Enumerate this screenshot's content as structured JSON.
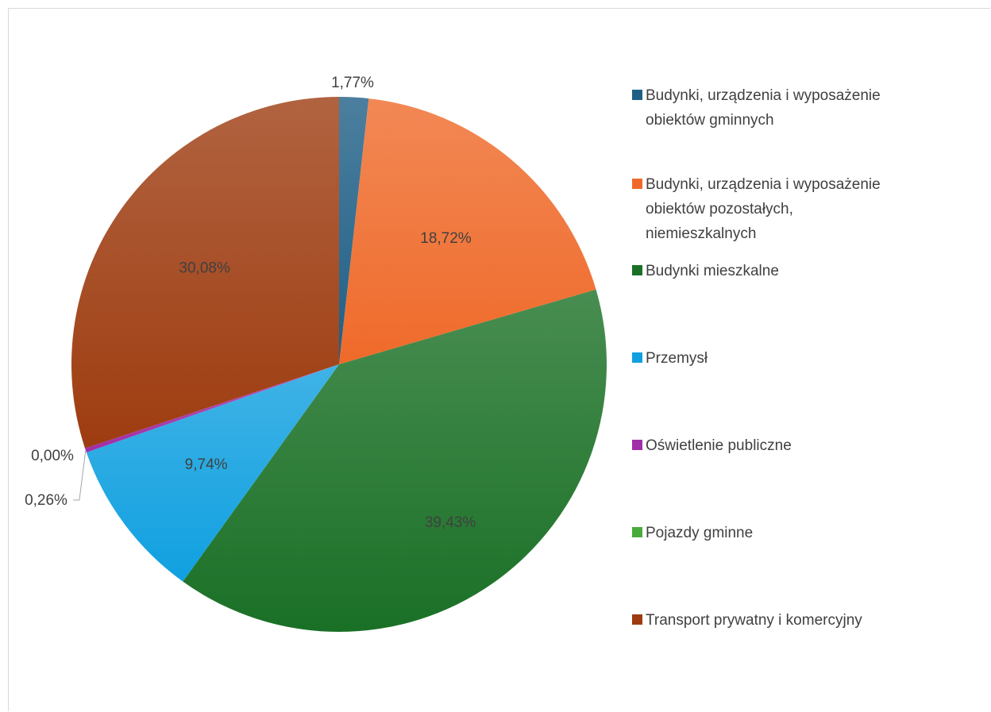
{
  "chart_data": {
    "type": "pie",
    "slices": [
      {
        "name": "Budynki, urządzenia i wyposażenie obiektów gminnych",
        "value": 1.77,
        "label": "1,77%",
        "color": "#1f5f86"
      },
      {
        "name": "Budynki, urządzenia i wyposażenie obiektów pozostałych, niemieszkalnych",
        "value": 18.72,
        "label": "18,72%",
        "color": "#ef6a2a"
      },
      {
        "name": "Budynki mieszkalne",
        "value": 39.43,
        "label": "39,43%",
        "color": "#1a7026"
      },
      {
        "name": "Przemysł",
        "value": 9.74,
        "label": "9,74%",
        "color": "#10a0e0"
      },
      {
        "name": "Oświetlenie publiczne",
        "value": 0.26,
        "label": "0,26%",
        "color": "#a02ea8"
      },
      {
        "name": "Pojazdy gminne",
        "value": 0.0,
        "label": "0,00%",
        "color": "#48ac3a"
      },
      {
        "name": "Transport prywatny i komercyjny",
        "value": 30.08,
        "label": "30,08%",
        "color": "#9e3c10"
      }
    ],
    "legend": {
      "position": "right",
      "entries": [
        [
          "Budynki, urządzenia i wyposażenie",
          "obiektów gminnych"
        ],
        [
          "Budynki, urządzenia i wyposażenie",
          "obiektów pozostałych,",
          "niemieszkalnych"
        ],
        [
          "Budynki mieszkalne"
        ],
        [
          "Przemysł"
        ],
        [
          "Oświetlenie publiczne"
        ],
        [
          "Pojazdy gminne"
        ],
        [
          "Transport prywatny i komercyjny"
        ]
      ]
    }
  }
}
